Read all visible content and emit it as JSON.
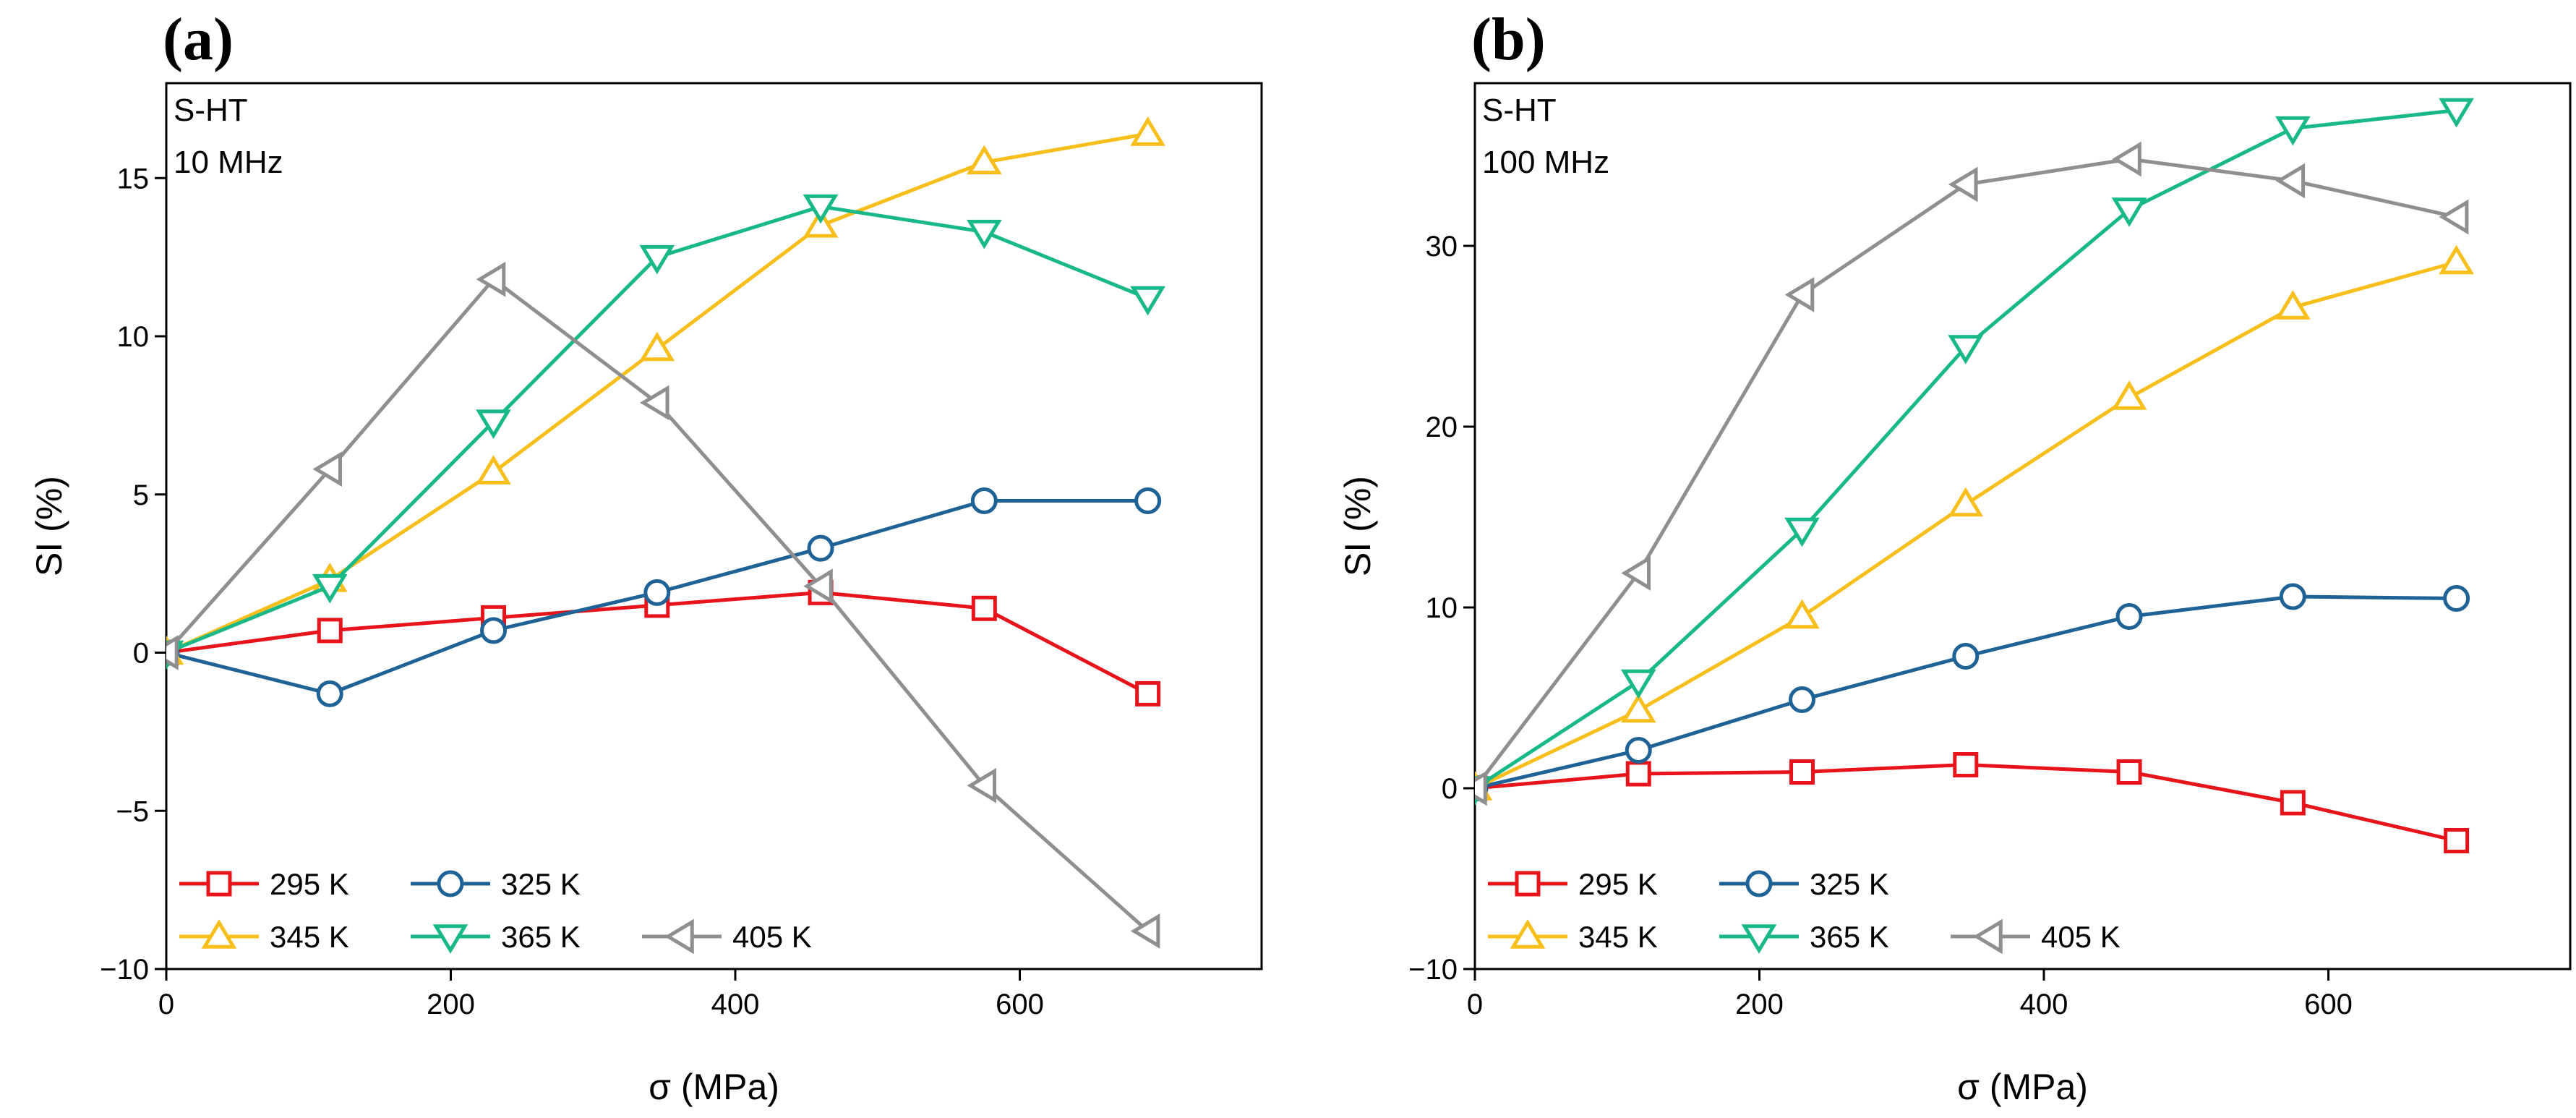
{
  "figure": {
    "paren_open": "(",
    "paren_close": ")"
  },
  "chart_data": [
    {
      "type": "line",
      "panel_label": "a",
      "annotations": [
        "S-HT",
        "10 MHz"
      ],
      "xlabel": "σ (MPa)",
      "ylabel": "SI (%)",
      "xlim": [
        0,
        770
      ],
      "ylim": [
        -10,
        18
      ],
      "xticks": [
        0,
        200,
        400,
        600
      ],
      "xtick_labels": [
        "0",
        "200",
        "400",
        "600"
      ],
      "yticks": [
        -10,
        -5,
        0,
        5,
        10,
        15
      ],
      "ytick_labels": [
        "−10",
        "−5",
        "0",
        "5",
        "10",
        "15"
      ],
      "grid": false,
      "legend_position": "bottom-left",
      "x": [
        0,
        115,
        230,
        345,
        460,
        575,
        690
      ],
      "series": [
        {
          "name": "295 K",
          "color": "#e8141c",
          "marker": "square",
          "values": [
            0,
            0.7,
            1.1,
            1.5,
            1.9,
            1.4,
            -1.3
          ]
        },
        {
          "name": "325 K",
          "color": "#1f6396",
          "marker": "circle",
          "values": [
            0,
            -1.3,
            0.7,
            1.9,
            3.3,
            4.8,
            4.8
          ]
        },
        {
          "name": "345 K",
          "color": "#f8bf1c",
          "marker": "triangle-up",
          "values": [
            0,
            2.3,
            5.7,
            9.6,
            13.5,
            15.5,
            16.4
          ]
        },
        {
          "name": "365 K",
          "color": "#19b888",
          "marker": "triangle-down",
          "values": [
            0,
            2.1,
            7.3,
            12.5,
            14.1,
            13.3,
            11.2
          ]
        },
        {
          "name": "405 K",
          "color": "#8f8f8f",
          "marker": "triangle-left",
          "values": [
            0,
            5.8,
            11.8,
            7.9,
            2.1,
            -4.2,
            -8.8
          ]
        }
      ]
    },
    {
      "type": "line",
      "panel_label": "b",
      "annotations": [
        "S-HT",
        "100 MHz"
      ],
      "xlabel": "σ (MPa)",
      "ylabel": "SI (%)",
      "xlim": [
        0,
        770
      ],
      "ylim": [
        -10,
        39
      ],
      "xticks": [
        0,
        200,
        400,
        600
      ],
      "xtick_labels": [
        "0",
        "200",
        "400",
        "600"
      ],
      "yticks": [
        -10,
        0,
        10,
        20,
        30
      ],
      "ytick_labels": [
        "−10",
        "0",
        "10",
        "20",
        "30"
      ],
      "grid": false,
      "legend_position": "bottom-left",
      "x": [
        0,
        115,
        230,
        345,
        460,
        575,
        690
      ],
      "series": [
        {
          "name": "295 K",
          "color": "#e8141c",
          "marker": "square",
          "values": [
            0,
            0.8,
            0.9,
            1.3,
            0.9,
            -0.8,
            -2.9
          ]
        },
        {
          "name": "325 K",
          "color": "#1f6396",
          "marker": "circle",
          "values": [
            0,
            2.1,
            4.9,
            7.3,
            9.5,
            10.6,
            10.5
          ]
        },
        {
          "name": "345 K",
          "color": "#f8bf1c",
          "marker": "triangle-up",
          "values": [
            0,
            4.3,
            9.5,
            15.7,
            21.6,
            26.6,
            29.1
          ]
        },
        {
          "name": "365 K",
          "color": "#19b888",
          "marker": "triangle-down",
          "values": [
            0,
            5.9,
            14.3,
            24.4,
            32.0,
            36.5,
            37.5
          ]
        },
        {
          "name": "405 K",
          "color": "#8f8f8f",
          "marker": "triangle-left",
          "values": [
            0,
            11.9,
            27.3,
            33.4,
            34.8,
            33.6,
            31.6
          ]
        }
      ]
    }
  ]
}
